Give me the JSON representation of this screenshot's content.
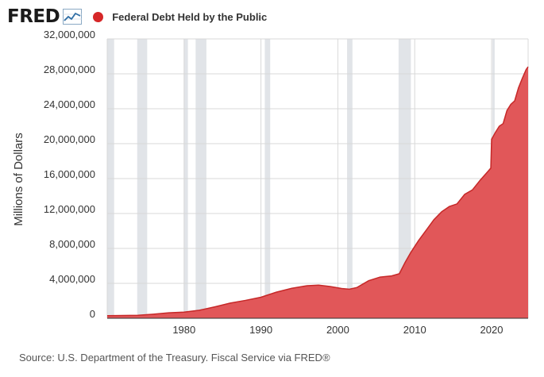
{
  "header": {
    "logo_text": "FRED",
    "logo_icon": "line-chart-icon",
    "series_title": "Federal Debt Held by the Public"
  },
  "footer": {
    "source": "Source: U.S. Department of the Treasury. Fiscal Service via FRED®"
  },
  "chart_data": {
    "type": "area",
    "title": "Federal Debt Held by the Public",
    "xlabel": "",
    "ylabel": "Millions of Dollars",
    "xlim": [
      1970.0,
      2024.75
    ],
    "ylim": [
      0,
      32000000
    ],
    "yticks": [
      0,
      4000000,
      8000000,
      12000000,
      16000000,
      20000000,
      24000000,
      28000000,
      32000000
    ],
    "ytick_labels": [
      "0",
      "4,000,000",
      "8,000,000",
      "12,000,000",
      "16,000,000",
      "20,000,000",
      "24,000,000",
      "28,000,000",
      "32,000,000"
    ],
    "xticks": [
      1980,
      1990,
      2000,
      2010,
      2020
    ],
    "xtick_labels": [
      "1980",
      "1990",
      "2000",
      "2010",
      "2020"
    ],
    "grid": true,
    "legend": "top-left",
    "series": [
      {
        "name": "Federal Debt Held by the Public",
        "color": "#e15759",
        "line_color": "#c62828",
        "x": [
          1970.0,
          1972.0,
          1974.0,
          1976.0,
          1978.0,
          1980.0,
          1982.0,
          1984.0,
          1986.0,
          1988.0,
          1990.0,
          1992.0,
          1994.0,
          1996.0,
          1997.5,
          1999.0,
          2000.5,
          2001.5,
          2002.5,
          2004.0,
          2005.5,
          2007.0,
          2008.0,
          2008.75,
          2009.5,
          2010.5,
          2011.5,
          2012.5,
          2013.5,
          2014.5,
          2015.5,
          2016.5,
          2017.5,
          2018.5,
          2019.5,
          2019.9,
          2020.0,
          2020.5,
          2021.0,
          2021.5,
          2022.0,
          2022.5,
          2023.0,
          2023.5,
          2024.0,
          2024.5,
          2024.75
        ],
        "y": [
          290000,
          320000,
          340000,
          470000,
          620000,
          710000,
          920000,
          1310000,
          1740000,
          2050000,
          2410000,
          2990000,
          3430000,
          3730000,
          3800000,
          3640000,
          3410000,
          3330000,
          3530000,
          4300000,
          4720000,
          4850000,
          5100000,
          6400000,
          7550000,
          8900000,
          10100000,
          11300000,
          12200000,
          12800000,
          13100000,
          14200000,
          14700000,
          15800000,
          16800000,
          17200000,
          20500000,
          21300000,
          22000000,
          22300000,
          23800000,
          24500000,
          24900000,
          26400000,
          27500000,
          28500000,
          28800000
        ]
      }
    ],
    "recessions": [
      [
        1969.9,
        1970.9
      ],
      [
        1973.9,
        1975.2
      ],
      [
        1980.0,
        1980.5
      ],
      [
        1981.5,
        1982.9
      ],
      [
        1990.5,
        1991.2
      ],
      [
        2001.2,
        2001.9
      ],
      [
        2007.9,
        2009.5
      ],
      [
        2020.1,
        2020.4
      ]
    ],
    "colors": {
      "area": "#e15759",
      "line": "#c62828",
      "recession": "#e1e4e8",
      "grid": "#d8d8d8",
      "axis": "#333333"
    }
  }
}
